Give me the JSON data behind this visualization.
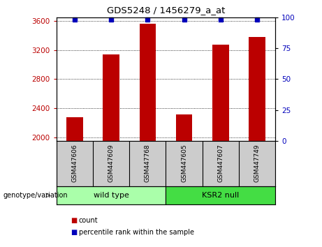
{
  "title": "GDS5248 / 1456279_a_at",
  "samples": [
    "GSM447606",
    "GSM447609",
    "GSM447768",
    "GSM447605",
    "GSM447607",
    "GSM447749"
  ],
  "counts": [
    2270,
    3140,
    3560,
    2310,
    3270,
    3380
  ],
  "percentile_ranks": [
    100,
    100,
    100,
    100,
    100,
    100
  ],
  "group_wt_name": "wild type",
  "group_ksr_name": "KSR2 null",
  "group_wt_color": "#AAFFAA",
  "group_ksr_color": "#44DD44",
  "bar_color": "#BB0000",
  "percentile_color": "#0000BB",
  "ylim_left": [
    1950,
    3650
  ],
  "ylim_right": [
    0,
    100
  ],
  "yticks_left": [
    2000,
    2400,
    2800,
    3200,
    3600
  ],
  "yticks_right": [
    0,
    25,
    50,
    75,
    100
  ],
  "bar_width": 0.45,
  "genotype_label": "genotype/variation",
  "background_color": "#FFFFFF",
  "sample_box_color": "#CCCCCC",
  "legend_count_label": "count",
  "legend_pct_label": "percentile rank within the sample"
}
